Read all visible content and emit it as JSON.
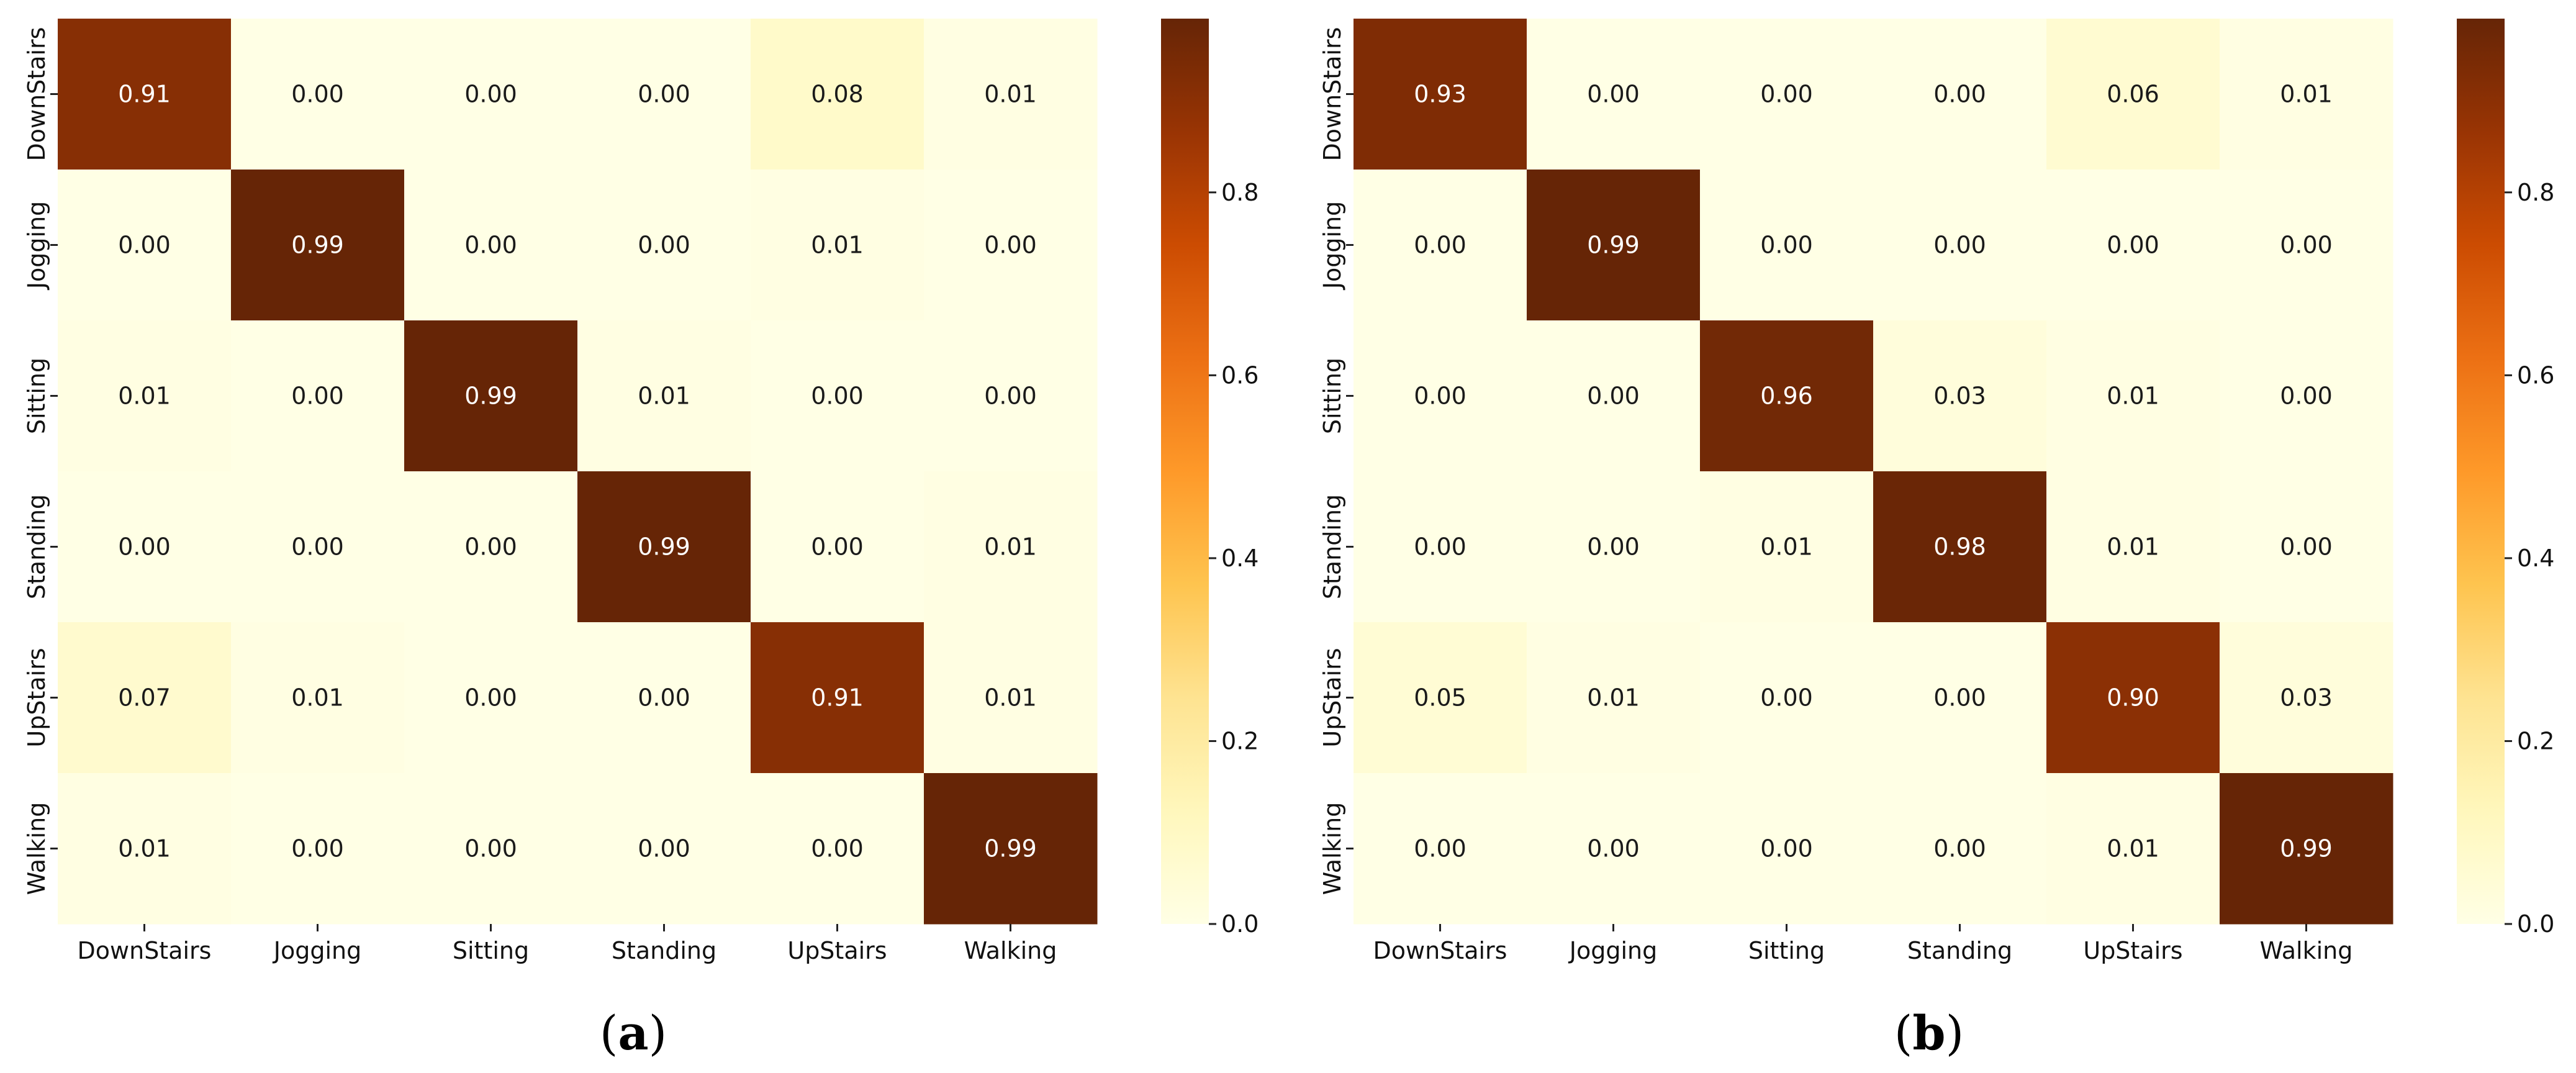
{
  "chart_data": [
    {
      "type": "heatmap",
      "panel_label": "a",
      "caption_open": "(",
      "caption_close": ")",
      "row_labels": [
        "DownStairs",
        "Jogging",
        "Sitting",
        "Standing",
        "UpStairs",
        "Walking"
      ],
      "col_labels": [
        "DownStairs",
        "Jogging",
        "Sitting",
        "Standing",
        "UpStairs",
        "Walking"
      ],
      "values": [
        [
          0.91,
          0.0,
          0.0,
          0.0,
          0.08,
          0.01
        ],
        [
          0.0,
          0.99,
          0.0,
          0.0,
          0.01,
          0.0
        ],
        [
          0.01,
          0.0,
          0.99,
          0.01,
          0.0,
          0.0
        ],
        [
          0.0,
          0.0,
          0.0,
          0.99,
          0.0,
          0.01
        ],
        [
          0.07,
          0.01,
          0.0,
          0.0,
          0.91,
          0.01
        ],
        [
          0.01,
          0.0,
          0.0,
          0.0,
          0.0,
          0.99
        ]
      ],
      "colorbar": {
        "range": [
          0.0,
          0.99
        ],
        "ticks": [
          0.0,
          0.2,
          0.4,
          0.6,
          0.8
        ],
        "tick_labels": [
          "0.0",
          "0.2",
          "0.4",
          "0.6",
          "0.8"
        ]
      }
    },
    {
      "type": "heatmap",
      "panel_label": "b",
      "caption_open": "(",
      "caption_close": ")",
      "row_labels": [
        "DownStairs",
        "Jogging",
        "Sitting",
        "Standing",
        "UpStairs",
        "Walking"
      ],
      "col_labels": [
        "DownStairs",
        "Jogging",
        "Sitting",
        "Standing",
        "UpStairs",
        "Walking"
      ],
      "values": [
        [
          0.93,
          0.0,
          0.0,
          0.0,
          0.06,
          0.01
        ],
        [
          0.0,
          0.99,
          0.0,
          0.0,
          0.0,
          0.0
        ],
        [
          0.0,
          0.0,
          0.96,
          0.03,
          0.01,
          0.0
        ],
        [
          0.0,
          0.0,
          0.01,
          0.98,
          0.01,
          0.0
        ],
        [
          0.05,
          0.01,
          0.0,
          0.0,
          0.9,
          0.03
        ],
        [
          0.0,
          0.0,
          0.0,
          0.0,
          0.01,
          0.99
        ]
      ],
      "colorbar": {
        "range": [
          0.0,
          0.99
        ],
        "ticks": [
          0.0,
          0.2,
          0.4,
          0.6,
          0.8
        ],
        "tick_labels": [
          "0.0",
          "0.2",
          "0.4",
          "0.6",
          "0.8"
        ]
      }
    }
  ],
  "colormap": {
    "name": "YlOrBr",
    "stops": [
      "#ffffe5",
      "#fff7bc",
      "#fee391",
      "#fec44f",
      "#fe9929",
      "#ec7014",
      "#cc4c02",
      "#993404",
      "#662506"
    ]
  }
}
